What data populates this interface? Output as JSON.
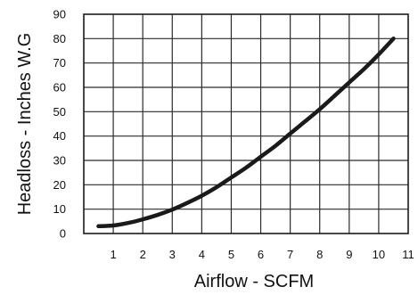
{
  "chart_data": {
    "type": "line",
    "title": "",
    "xlabel": "Airflow - SCFM",
    "ylabel": "Headloss - Inches W.G",
    "xlim": [
      0,
      11
    ],
    "ylim": [
      0,
      90
    ],
    "grid": true,
    "x_ticks": [
      "1",
      "2",
      "3",
      "4",
      "5",
      "6",
      "7",
      "8",
      "9",
      "10",
      "11"
    ],
    "y_ticks": [
      "0",
      "10",
      "20",
      "30",
      "40",
      "50",
      "60",
      "70",
      "80",
      "90"
    ],
    "series": [
      {
        "name": "",
        "color": "#1a1a1a",
        "x": [
          0.5,
          1,
          1.5,
          2,
          2.5,
          3,
          3.5,
          4,
          4.5,
          5,
          5.5,
          6,
          6.5,
          7,
          7.5,
          8,
          8.5,
          9,
          9.5,
          10,
          10.5
        ],
        "y": [
          3,
          3.3,
          4.3,
          5.8,
          7.6,
          9.8,
          12.5,
          15.5,
          19,
          23,
          27,
          31.5,
          36,
          41,
          46,
          51,
          56.5,
          62,
          67.5,
          73.5,
          80
        ]
      }
    ]
  }
}
